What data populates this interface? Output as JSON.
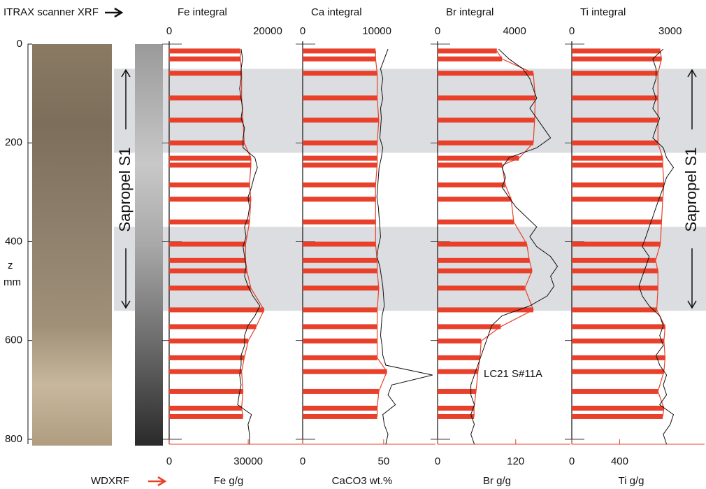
{
  "chart_data": {
    "type": "profile",
    "top_label": "ITRAX scanner XRF",
    "bottom_label": "WDXRF",
    "ylabel": "z",
    "yunit": "mm",
    "ylim": [
      0,
      810
    ],
    "yticks": [
      0,
      200,
      400,
      600,
      800
    ],
    "band_label": "Sapropel S1",
    "bands": [
      {
        "from": 50,
        "to": 220
      },
      {
        "from": 370,
        "to": 540
      }
    ],
    "annotation": "LC21 S#11A",
    "wdxrf_color": "#e8402a",
    "itrax_color": "#111111",
    "band_color": "#dcdde0",
    "wdxrf_depth": [
      14,
      30,
      59,
      109,
      154,
      200,
      231,
      245,
      285,
      314,
      360,
      405,
      438,
      459,
      494,
      538,
      572,
      601,
      635,
      663,
      703,
      737,
      754
    ],
    "itrax_depth": [
      10,
      30,
      50,
      70,
      90,
      110,
      130,
      150,
      170,
      190,
      210,
      230,
      250,
      270,
      290,
      310,
      330,
      350,
      370,
      390,
      410,
      430,
      450,
      470,
      490,
      510,
      530,
      550,
      570,
      590,
      610,
      630,
      650,
      670,
      690,
      710,
      730,
      750,
      770,
      790,
      810
    ],
    "panels": [
      {
        "title": "Fe integral",
        "xlabel": "Fe   g/g",
        "top_xlim": [
          0,
          26950
        ],
        "top_xticks": [
          0,
          20000
        ],
        "xlim": [
          0,
          50400
        ],
        "xticks": [
          0,
          30000
        ],
        "wdxrf": [
          27000,
          27000,
          27500,
          27500,
          28000,
          28500,
          31000,
          31000,
          30500,
          31000,
          30500,
          29000,
          29000,
          29500,
          31000,
          36000,
          33000,
          30000,
          28500,
          27500,
          28000,
          27500,
          28000
        ],
        "itrax": [
          14600,
          14900,
          14600,
          14600,
          14300,
          14600,
          14900,
          14600,
          15300,
          15000,
          15000,
          17400,
          17900,
          17200,
          16700,
          16000,
          16300,
          16000,
          15300,
          15600,
          15000,
          15300,
          15600,
          15300,
          16000,
          17000,
          18400,
          17400,
          16000,
          15300,
          15300,
          14600,
          14600,
          14300,
          14600,
          14200,
          13900,
          16700,
          16000,
          16300,
          16300
        ]
      },
      {
        "title": "Ca integral",
        "xlabel": "CaCO3 wt.%",
        "top_xlim": [
          0,
          17900
        ],
        "top_xticks": [
          0,
          10000
        ],
        "xlim": [
          0,
          82
        ],
        "xticks": [
          0,
          50
        ],
        "wdxrf": [
          45,
          45,
          46,
          46,
          47,
          46,
          46,
          46,
          45,
          45,
          45,
          45,
          46,
          46,
          47,
          46,
          46,
          46,
          46,
          52,
          47,
          46,
          46
        ],
        "itrax": [
          11500,
          11000,
          10500,
          10800,
          10600,
          10800,
          10500,
          10600,
          10500,
          10400,
          10800,
          10600,
          10300,
          10200,
          10100,
          10000,
          10200,
          10300,
          10400,
          10500,
          10200,
          10000,
          10400,
          10600,
          10800,
          10900,
          11000,
          10700,
          10600,
          10500,
          10700,
          10800,
          11200,
          17500,
          12000,
          11500,
          12500,
          10800,
          11000,
          11500,
          11200
        ]
      },
      {
        "title": "Br integral",
        "xlabel": "Br   g/g",
        "top_xlim": [
          0,
          6900
        ],
        "top_xticks": [
          0,
          4000
        ],
        "xlim": [
          0,
          204
        ],
        "xticks": [
          0,
          120
        ],
        "wdxrf": [
          91,
          99,
          147,
          150,
          149,
          147,
          125,
          99,
          104,
          113,
          117,
          137,
          141,
          145,
          134,
          147,
          97,
          67,
          65,
          62,
          59,
          56,
          56
        ],
        "itrax": [
          3170,
          3710,
          4430,
          4790,
          4970,
          5150,
          4790,
          5150,
          5510,
          5870,
          5150,
          3710,
          3350,
          3530,
          3350,
          3710,
          4070,
          4610,
          5150,
          4790,
          5150,
          5870,
          6230,
          5870,
          6050,
          5690,
          4790,
          3350,
          2810,
          2630,
          2450,
          2270,
          2090,
          1910,
          1730,
          1730,
          1910,
          1730,
          1910,
          1730,
          1910
        ]
      },
      {
        "title": "Ti integral",
        "xlabel": "Ti   g/g",
        "top_xlim": [
          0,
          4050
        ],
        "top_xticks": [
          0,
          3000
        ],
        "xlim": [
          0,
          1110
        ],
        "xticks": [
          0,
          400
        ],
        "wdxrf": [
          740,
          750,
          720,
          720,
          720,
          720,
          760,
          760,
          770,
          760,
          750,
          740,
          700,
          720,
          720,
          710,
          780,
          770,
          780,
          770,
          720,
          770,
          760
        ],
        "itrax": [
          2790,
          2470,
          2570,
          2570,
          2470,
          2570,
          2470,
          2680,
          2570,
          2470,
          2790,
          2890,
          3100,
          2890,
          2790,
          2680,
          2570,
          2470,
          2360,
          2260,
          2150,
          2360,
          2260,
          2150,
          2050,
          2150,
          2360,
          2680,
          2790,
          2680,
          2790,
          2570,
          2680,
          2890,
          2790,
          2890,
          2680,
          3100,
          3000,
          2790,
          2890
        ]
      }
    ]
  }
}
